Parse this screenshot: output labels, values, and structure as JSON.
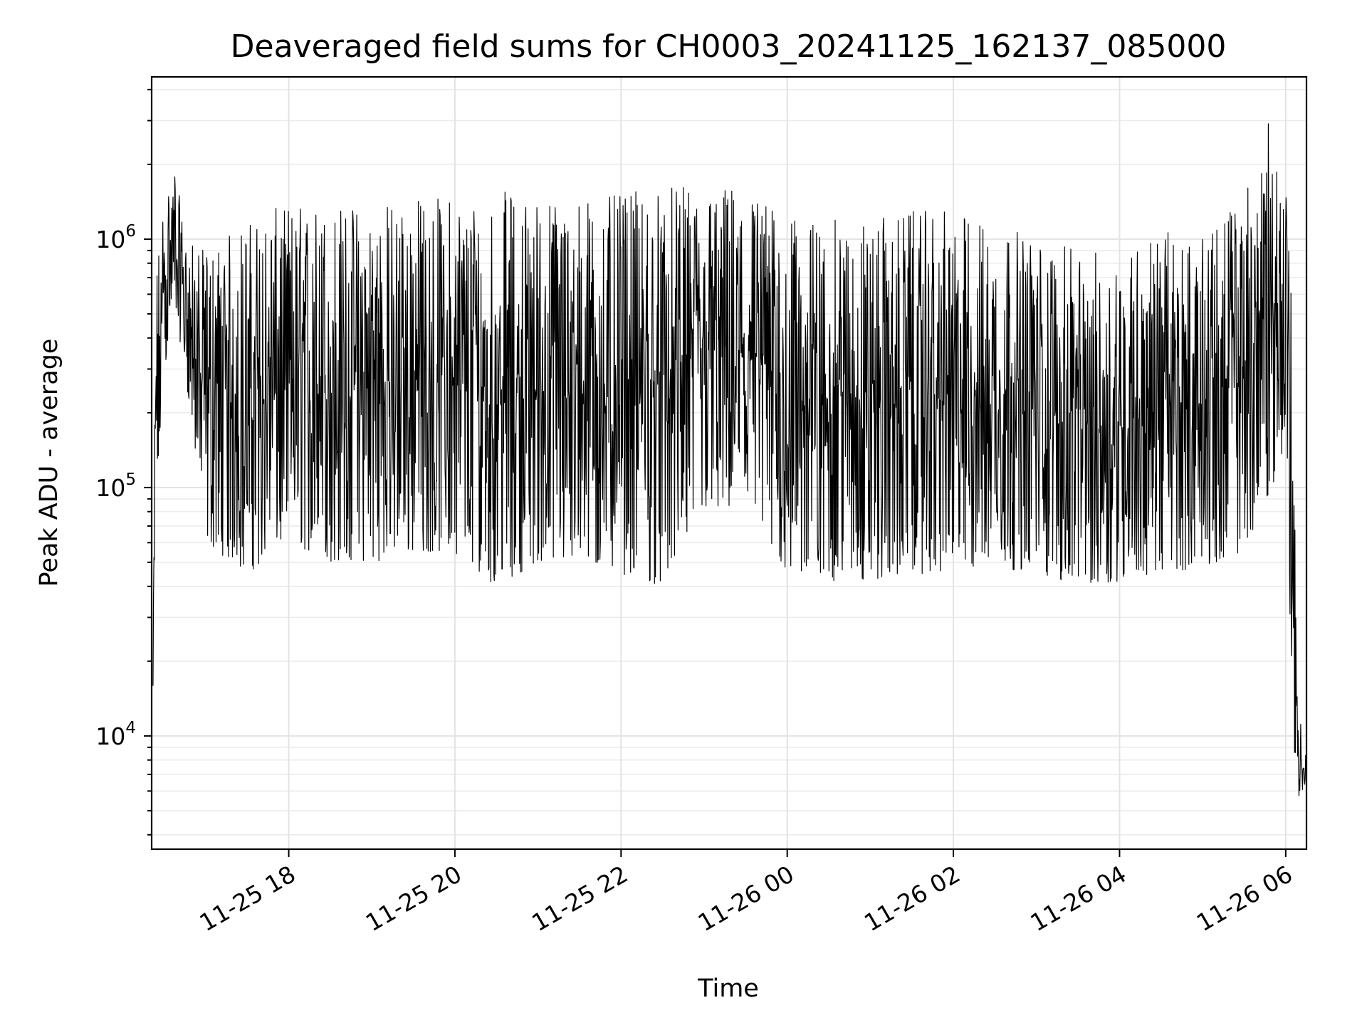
{
  "chart_data": {
    "type": "line",
    "title": "Deaveraged field sums for CH0003_20241125_162137_085000",
    "xlabel": "Time",
    "ylabel": "Peak ADU - average",
    "yscale": "log",
    "grid": true,
    "legend": "none",
    "line_color": "#000000",
    "xlim": [
      "2024-11-25 16:21",
      "2024-11-26 06:15"
    ],
    "ylim": [
      3500,
      4500000
    ],
    "x_ticks": [
      "2024-11-25 18:00",
      "2024-11-25 20:00",
      "2024-11-25 22:00",
      "2024-11-26 00:00",
      "2024-11-26 02:00",
      "2024-11-26 04:00",
      "2024-11-26 06:00"
    ],
    "x_tick_labels": [
      "11-25 18",
      "11-25 20",
      "11-25 22",
      "11-26 00",
      "11-26 02",
      "11-26 04",
      "11-26 06"
    ],
    "y_ticks": [
      10000,
      100000,
      1000000
    ],
    "y_tick_labels": [
      {
        "base": "10",
        "exp": "4"
      },
      {
        "base": "10",
        "exp": "5"
      },
      {
        "base": "10",
        "exp": "6"
      }
    ],
    "envelope_note_free": true,
    "series": [
      {
        "x": [
          "2024-11-25 16:22",
          "2024-11-25 16:24",
          "2024-11-25 16:30",
          "2024-11-25 16:38",
          "2024-11-25 16:45",
          "2024-11-25 17:00",
          "2024-11-25 17:30",
          "2024-11-25 18:00",
          "2024-11-25 18:30",
          "2024-11-25 19:00",
          "2024-11-25 19:30",
          "2024-11-25 20:00",
          "2024-11-25 20:30",
          "2024-11-25 21:00",
          "2024-11-25 21:30",
          "2024-11-25 22:00",
          "2024-11-25 22:30",
          "2024-11-25 23:00",
          "2024-11-25 23:30",
          "2024-11-26 00:00",
          "2024-11-26 00:30",
          "2024-11-26 01:00",
          "2024-11-26 01:30",
          "2024-11-26 02:00",
          "2024-11-26 02:30",
          "2024-11-26 03:00",
          "2024-11-26 03:30",
          "2024-11-26 04:00",
          "2024-11-26 04:30",
          "2024-11-26 05:00",
          "2024-11-26 05:30",
          "2024-11-26 05:50",
          "2024-11-26 06:00",
          "2024-11-26 06:05",
          "2024-11-26 06:08",
          "2024-11-26 06:15"
        ],
        "low": [
          11000,
          60000,
          300000,
          500000,
          300000,
          60000,
          45000,
          60000,
          50000,
          50000,
          55000,
          55000,
          40000,
          50000,
          48000,
          45000,
          40000,
          80000,
          75000,
          45000,
          42000,
          42000,
          45000,
          45000,
          48000,
          45000,
          40000,
          42000,
          45000,
          48000,
          55000,
          100000,
          150000,
          10000,
          5500,
          6000
        ],
        "high": [
          20000,
          800000,
          1500000,
          2000000,
          1000000,
          900000,
          1200000,
          1400000,
          1400000,
          1400000,
          1500000,
          1500000,
          1600000,
          1500000,
          1500000,
          1500000,
          1650000,
          1600000,
          1700000,
          1200000,
          1200000,
          1200000,
          1300000,
          1300000,
          1200000,
          1000000,
          900000,
          900000,
          1100000,
          1000000,
          1600000,
          3200000,
          2000000,
          450000,
          15000,
          8000
        ]
      }
    ]
  }
}
